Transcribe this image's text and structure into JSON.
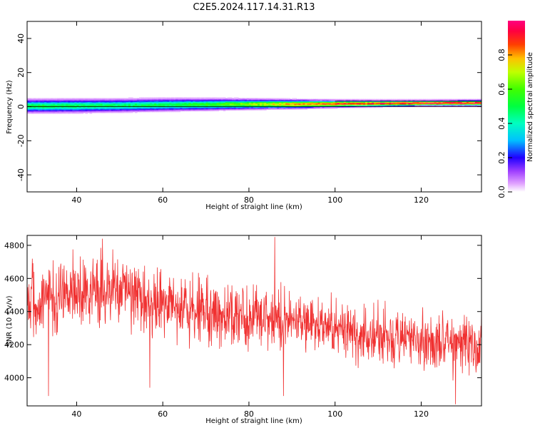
{
  "figure": {
    "title": "C2E5.2024.117.14.31.R13"
  },
  "colors": {
    "signal": "#f03030",
    "axis": "#000000"
  },
  "chart_data": [
    {
      "type": "heatmap",
      "xlabel": "Height of straight line (km)",
      "ylabel": "Frequency (Hz)",
      "xlim": [
        28.5,
        134
      ],
      "ylim": [
        -50,
        50
      ],
      "xticks": [
        40,
        60,
        80,
        100,
        120
      ],
      "yticks": [
        -40,
        -20,
        0,
        20,
        40
      ],
      "colorbar": {
        "label": "Normalized spectral amplitude",
        "range": [
          0.0,
          1.0
        ],
        "ticks": [
          0.0,
          0.2,
          0.4,
          0.6,
          0.8
        ],
        "colormap": "gist_ncar-like"
      },
      "band": [
        {
          "x": 29,
          "center": 0.3,
          "width": 2.8,
          "peak": 0.52
        },
        {
          "x": 40,
          "center": 0.4,
          "width": 2.8,
          "peak": 0.5
        },
        {
          "x": 50,
          "center": 0.6,
          "width": 2.7,
          "peak": 0.48
        },
        {
          "x": 60,
          "center": 1.0,
          "width": 2.6,
          "peak": 0.5
        },
        {
          "x": 70,
          "center": 1.2,
          "width": 2.4,
          "peak": 0.55
        },
        {
          "x": 80,
          "center": 1.4,
          "width": 2.1,
          "peak": 0.66
        },
        {
          "x": 90,
          "center": 1.4,
          "width": 1.8,
          "peak": 0.82
        },
        {
          "x": 100,
          "center": 1.6,
          "width": 1.5,
          "peak": 0.9
        },
        {
          "x": 110,
          "center": 1.8,
          "width": 1.3,
          "peak": 0.93
        },
        {
          "x": 120,
          "center": 2.0,
          "width": 1.2,
          "peak": 0.95
        },
        {
          "x": 134,
          "center": 2.1,
          "width": 1.2,
          "peak": 0.96
        }
      ]
    },
    {
      "type": "line",
      "xlabel": "Height of straight line (km)",
      "ylabel": "SNR (10 * v/v)",
      "xlim": [
        28.5,
        134
      ],
      "ylim": [
        3830,
        4860
      ],
      "xticks": [
        40,
        60,
        80,
        100,
        120
      ],
      "yticks": [
        4000,
        4200,
        4400,
        4600,
        4800
      ],
      "trend": [
        {
          "x": 29,
          "mean": 4450,
          "spread": 180
        },
        {
          "x": 40,
          "mean": 4530,
          "spread": 175
        },
        {
          "x": 50,
          "mean": 4520,
          "spread": 170
        },
        {
          "x": 60,
          "mean": 4430,
          "spread": 170
        },
        {
          "x": 70,
          "mean": 4400,
          "spread": 165
        },
        {
          "x": 80,
          "mean": 4360,
          "spread": 160
        },
        {
          "x": 90,
          "mean": 4340,
          "spread": 160
        },
        {
          "x": 100,
          "mean": 4300,
          "spread": 155
        },
        {
          "x": 110,
          "mean": 4260,
          "spread": 150
        },
        {
          "x": 120,
          "mean": 4230,
          "spread": 150
        },
        {
          "x": 134,
          "mean": 4210,
          "spread": 150
        }
      ],
      "extremes": [
        {
          "x": 33.5,
          "y": 3890
        },
        {
          "x": 57,
          "y": 3940
        },
        {
          "x": 86,
          "y": 4850
        },
        {
          "x": 88,
          "y": 3890
        },
        {
          "x": 128,
          "y": 3840
        },
        {
          "x": 46,
          "y": 4840
        }
      ]
    }
  ]
}
